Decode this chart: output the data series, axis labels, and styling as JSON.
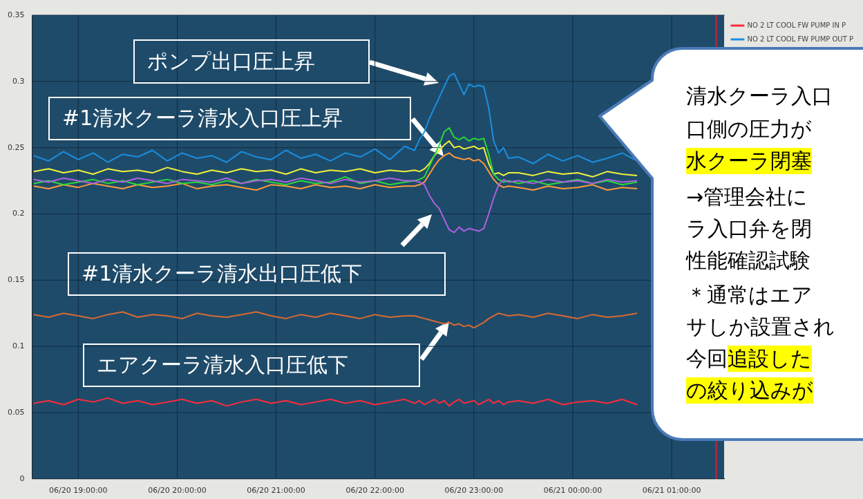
{
  "chart_data": {
    "type": "line",
    "x": [
      "--06-20T18:33",
      "--06-20T18:42",
      "--06-20T18:51",
      "--06-20T19:00",
      "--06-20T19:09",
      "--06-20T19:18",
      "--06-20T19:27",
      "--06-20T19:36",
      "--06-20T19:45",
      "--06-20T19:54",
      "--06-20T20:03",
      "--06-20T20:12",
      "--06-20T20:21",
      "--06-20T20:30",
      "--06-20T20:39",
      "--06-20T20:48",
      "--06-20T20:57",
      "--06-20T21:06",
      "--06-20T21:15",
      "--06-20T21:24",
      "--06-20T21:33",
      "--06-20T21:42",
      "--06-20T21:51",
      "--06-20T22:00",
      "--06-20T22:09",
      "--06-20T22:18",
      "--06-20T22:24",
      "--06-20T22:27",
      "--06-20T22:30",
      "--06-20T22:33",
      "--06-20T22:36",
      "--06-20T22:39",
      "--06-20T22:42",
      "--06-20T22:45",
      "--06-20T22:48",
      "--06-20T22:51",
      "--06-20T22:54",
      "--06-20T22:57",
      "--06-20T23:00",
      "--06-20T23:03",
      "--06-20T23:06",
      "--06-20T23:09",
      "--06-20T23:12",
      "--06-20T23:15",
      "--06-20T23:18",
      "--06-20T23:21",
      "--06-20T23:27",
      "--06-20T23:36",
      "--06-20T23:45",
      "--06-20T23:54",
      "--06-21T00:03",
      "--06-21T00:12",
      "--06-21T00:21",
      "--06-21T00:30",
      "--06-21T00:39"
    ],
    "xlim": [
      "--06-20T18:32",
      "--06-21T01:32"
    ],
    "xticks": [
      {
        "value": "--06-20T19:00",
        "label": "06/20 19:00:00"
      },
      {
        "value": "--06-20T20:00",
        "label": "06/20 20:00:00"
      },
      {
        "value": "--06-20T21:00",
        "label": "06/20 21:00:00"
      },
      {
        "value": "--06-20T22:00",
        "label": "06/20 22:00:00"
      },
      {
        "value": "--06-20T23:00",
        "label": "06/20 23:00:00"
      },
      {
        "value": "--06-21T00:00",
        "label": "06/21 00:00:00"
      },
      {
        "value": "--06-21T01:00",
        "label": "06/21 01:00:00"
      }
    ],
    "ylim": [
      0,
      0.35
    ],
    "yticks": [
      0,
      0.05,
      0.1,
      0.15,
      0.2,
      0.25,
      0.3,
      0.35
    ],
    "grid": true,
    "legend": "top right",
    "series": [
      {
        "name": "NO 2 LT COOL FW PUMP IN P",
        "color": "#ff2a3c",
        "values": [
          0.057,
          0.059,
          0.056,
          0.06,
          0.058,
          0.061,
          0.057,
          0.059,
          0.056,
          0.058,
          0.06,
          0.057,
          0.059,
          0.055,
          0.058,
          0.06,
          0.057,
          0.059,
          0.056,
          0.058,
          0.06,
          0.057,
          0.059,
          0.056,
          0.058,
          0.06,
          0.057,
          0.059,
          0.056,
          0.058,
          0.06,
          0.057,
          0.059,
          0.055,
          0.058,
          0.06,
          0.057,
          0.058,
          0.059,
          0.056,
          0.058,
          0.06,
          0.057,
          0.059,
          0.056,
          0.058,
          0.059,
          0.057,
          0.06,
          0.056,
          0.058,
          0.059,
          0.057,
          0.06,
          0.056
        ]
      },
      {
        "name": "NO 2 LT COOL FW PUMP OUT P",
        "color": "#1a8fe0",
        "values": [
          0.244,
          0.24,
          0.247,
          0.241,
          0.246,
          0.239,
          0.245,
          0.243,
          0.248,
          0.24,
          0.246,
          0.242,
          0.244,
          0.239,
          0.247,
          0.243,
          0.241,
          0.248,
          0.242,
          0.245,
          0.24,
          0.246,
          0.243,
          0.249,
          0.241,
          0.251,
          0.248,
          0.256,
          0.262,
          0.272,
          0.28,
          0.288,
          0.296,
          0.304,
          0.306,
          0.298,
          0.29,
          0.298,
          0.296,
          0.297,
          0.296,
          0.28,
          0.255,
          0.246,
          0.25,
          0.242,
          0.243,
          0.238,
          0.245,
          0.24,
          0.244,
          0.239,
          0.242,
          0.246,
          0.24
        ]
      },
      {
        "color": "#d86a32",
        "values": [
          0.124,
          0.122,
          0.125,
          0.123,
          0.121,
          0.124,
          0.126,
          0.122,
          0.124,
          0.123,
          0.121,
          0.125,
          0.123,
          0.122,
          0.124,
          0.126,
          0.123,
          0.121,
          0.124,
          0.122,
          0.125,
          0.123,
          0.121,
          0.124,
          0.122,
          0.123,
          0.123,
          0.122,
          0.121,
          0.12,
          0.119,
          0.118,
          0.117,
          0.118,
          0.116,
          0.117,
          0.115,
          0.116,
          0.114,
          0.116,
          0.118,
          0.121,
          0.123,
          0.125,
          0.124,
          0.123,
          0.124,
          0.122,
          0.125,
          0.123,
          0.121,
          0.124,
          0.122,
          0.123,
          0.125
        ]
      },
      {
        "color": "#b060e0",
        "values": [
          0.226,
          0.224,
          0.227,
          0.225,
          0.223,
          0.226,
          0.224,
          0.227,
          0.225,
          0.223,
          0.226,
          0.225,
          0.224,
          0.227,
          0.223,
          0.225,
          0.226,
          0.224,
          0.227,
          0.225,
          0.223,
          0.226,
          0.224,
          0.225,
          0.227,
          0.225,
          0.225,
          0.224,
          0.222,
          0.214,
          0.208,
          0.204,
          0.196,
          0.188,
          0.186,
          0.19,
          0.187,
          0.189,
          0.188,
          0.187,
          0.189,
          0.2,
          0.212,
          0.222,
          0.226,
          0.224,
          0.225,
          0.223,
          0.226,
          0.224,
          0.225,
          0.223,
          0.226,
          0.224,
          0.225
        ]
      },
      {
        "color": "#2bd83a",
        "values": [
          0.223,
          0.225,
          0.222,
          0.224,
          0.226,
          0.223,
          0.225,
          0.222,
          0.224,
          0.226,
          0.223,
          0.224,
          0.222,
          0.225,
          0.223,
          0.226,
          0.224,
          0.222,
          0.225,
          0.223,
          0.224,
          0.228,
          0.223,
          0.225,
          0.222,
          0.224,
          0.225,
          0.226,
          0.228,
          0.236,
          0.244,
          0.252,
          0.262,
          0.265,
          0.258,
          0.256,
          0.258,
          0.255,
          0.257,
          0.256,
          0.257,
          0.245,
          0.23,
          0.226,
          0.224,
          0.225,
          0.223,
          0.225,
          0.222,
          0.224,
          0.226,
          0.223,
          0.225,
          0.222,
          0.224
        ]
      },
      {
        "color": "#ff9a3a",
        "values": [
          0.221,
          0.219,
          0.222,
          0.22,
          0.223,
          0.221,
          0.219,
          0.222,
          0.22,
          0.221,
          0.223,
          0.219,
          0.221,
          0.222,
          0.22,
          0.218,
          0.222,
          0.221,
          0.219,
          0.222,
          0.22,
          0.221,
          0.219,
          0.222,
          0.22,
          0.221,
          0.221,
          0.222,
          0.224,
          0.23,
          0.236,
          0.241,
          0.244,
          0.246,
          0.243,
          0.242,
          0.241,
          0.242,
          0.24,
          0.241,
          0.238,
          0.232,
          0.226,
          0.222,
          0.22,
          0.221,
          0.22,
          0.218,
          0.221,
          0.219,
          0.22,
          0.222,
          0.218,
          0.22,
          0.219
        ]
      },
      {
        "color": "#f2f23a",
        "values": [
          0.232,
          0.234,
          0.231,
          0.233,
          0.23,
          0.234,
          0.232,
          0.233,
          0.231,
          0.235,
          0.232,
          0.23,
          0.233,
          0.231,
          0.234,
          0.232,
          0.233,
          0.23,
          0.234,
          0.231,
          0.233,
          0.232,
          0.234,
          0.231,
          0.233,
          0.232,
          0.233,
          0.232,
          0.234,
          0.238,
          0.244,
          0.248,
          0.252,
          0.255,
          0.25,
          0.251,
          0.249,
          0.25,
          0.251,
          0.249,
          0.25,
          0.238,
          0.23,
          0.231,
          0.229,
          0.231,
          0.231,
          0.229,
          0.232,
          0.23,
          0.231,
          0.228,
          0.232,
          0.23,
          0.229
        ]
      }
    ],
    "ref_lines": [
      {
        "axis": "x",
        "value": "--06-21T01:27",
        "color": "#d02030"
      }
    ],
    "annotations": [
      "ポンプ出口圧上昇",
      "#1清水クーラ清水入口圧上昇",
      "#1清水クーラ清水出口圧低下",
      "エアクーラ清水入口圧低下",
      "清水クーラ入口",
      "口側の圧力が",
      "水クーラ閉塞",
      "→管理会社に",
      "ラ入口弁を閉",
      "性能確認試験",
      "＊通常はエア",
      "サしか設置され",
      "今回",
      "追設した",
      "の絞り込みが"
    ]
  }
}
